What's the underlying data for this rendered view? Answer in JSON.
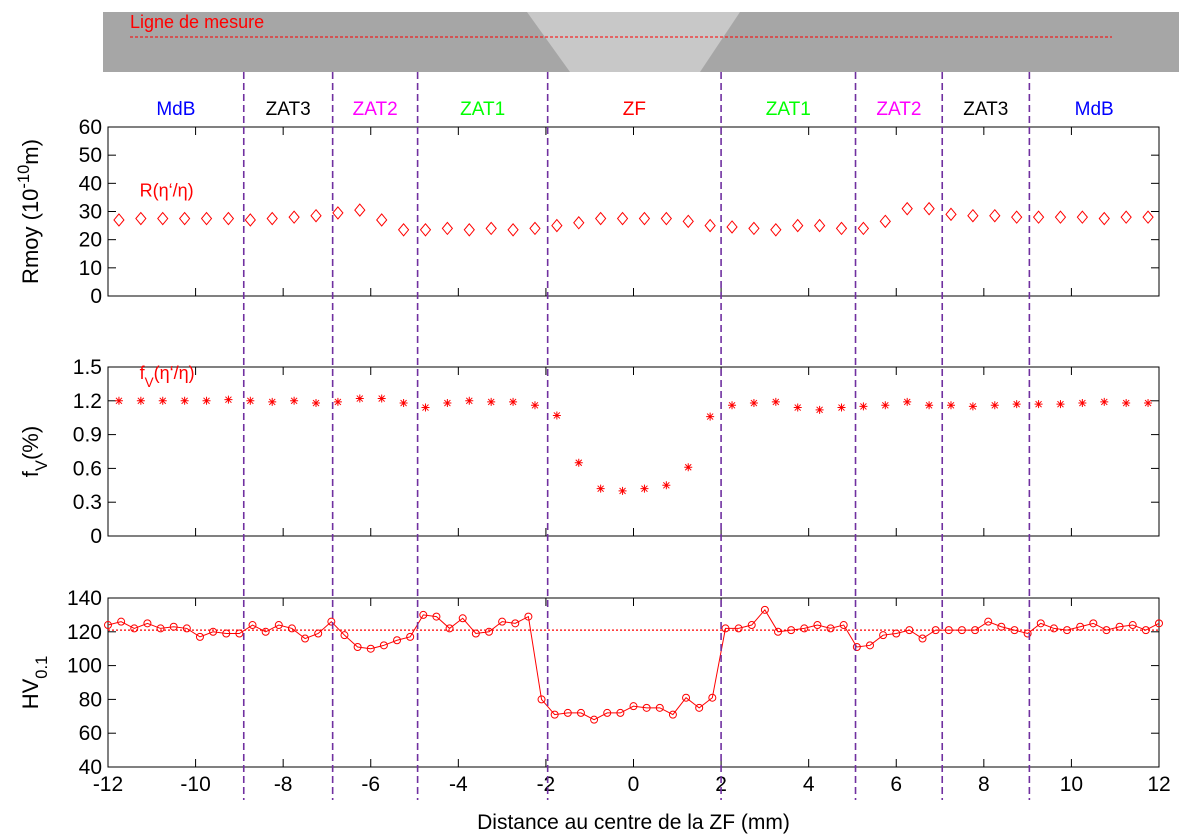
{
  "banner": {
    "label": "Ligne de mesure"
  },
  "zones": [
    {
      "label": "MdB",
      "color": "#0000ff"
    },
    {
      "label": "ZAT3",
      "color": "#000000"
    },
    {
      "label": "ZAT2",
      "color": "#ff00ff"
    },
    {
      "label": "ZAT1",
      "color": "#00ff00"
    },
    {
      "label": "ZF",
      "color": "#ff0000"
    },
    {
      "label": "ZAT1",
      "color": "#00ff00"
    },
    {
      "label": "ZAT2",
      "color": "#ff00ff"
    },
    {
      "label": "ZAT3",
      "color": "#000000"
    },
    {
      "label": "MdB",
      "color": "#0000ff"
    }
  ],
  "zone_boundaries": [
    -8.9,
    -6.87,
    -4.93,
    -1.96,
    2.0,
    5.07,
    7.05,
    9.04
  ],
  "boundary_color": "#7030a0",
  "x_axis": {
    "label": "Distance au centre de la ZF (mm)",
    "lim": [
      -12,
      12
    ],
    "ticks": [
      -12,
      -10,
      -8,
      -6,
      -4,
      -2,
      0,
      2,
      4,
      6,
      8,
      10,
      12
    ]
  },
  "chart_data": [
    {
      "type": "scatter",
      "marker": "diamond",
      "color": "#ff0000",
      "ylabel": [
        {
          "text": "Rmoy (10"
        },
        {
          "text": "-10",
          "sup": true
        },
        {
          "text": "m)"
        }
      ],
      "annotation": [
        {
          "text": "R(η‘/η)"
        }
      ],
      "ylim": [
        0,
        60
      ],
      "yticks": [
        0,
        10,
        20,
        30,
        40,
        50,
        60
      ],
      "x": [
        -11.75,
        -11.25,
        -10.75,
        -10.25,
        -9.75,
        -9.25,
        -8.75,
        -8.25,
        -7.75,
        -7.25,
        -6.75,
        -6.25,
        -5.75,
        -5.25,
        -4.75,
        -4.25,
        -3.75,
        -3.25,
        -2.75,
        -2.25,
        -1.75,
        -1.25,
        -0.75,
        -0.25,
        0.25,
        0.75,
        1.25,
        1.75,
        2.25,
        2.75,
        3.25,
        3.75,
        4.25,
        4.75,
        5.25,
        5.75,
        6.25,
        6.75,
        7.25,
        7.75,
        8.25,
        8.75,
        9.25,
        9.75,
        10.25,
        10.75,
        11.25,
        11.75
      ],
      "values": [
        27,
        27.5,
        27.5,
        27.5,
        27.5,
        27.5,
        27,
        27.5,
        28,
        28.5,
        29.5,
        30.5,
        27,
        23.5,
        23.5,
        24,
        23.5,
        24,
        23.5,
        24,
        25,
        26,
        27.5,
        27.5,
        27.5,
        27.5,
        26.5,
        25,
        24.5,
        24,
        23.5,
        25,
        25,
        24,
        24,
        26.5,
        31,
        31,
        29,
        28.5,
        28.5,
        28,
        28,
        28,
        28,
        27.5,
        28,
        28
      ]
    },
    {
      "type": "scatter",
      "marker": "asterisk",
      "color": "#ff0000",
      "ylabel": [
        {
          "text": "f"
        },
        {
          "text": "V",
          "sub": true
        },
        {
          "text": "(%)"
        }
      ],
      "annotation": [
        {
          "text": "f"
        },
        {
          "text": "V",
          "sub": true
        },
        {
          "text": "(η‘/η)"
        }
      ],
      "ylim": [
        0,
        1.5
      ],
      "yticks": [
        0,
        0.3,
        0.6,
        0.9,
        1.2,
        1.5
      ],
      "x": [
        -11.75,
        -11.25,
        -10.75,
        -10.25,
        -9.75,
        -9.25,
        -8.75,
        -8.25,
        -7.75,
        -7.25,
        -6.75,
        -6.25,
        -5.75,
        -5.25,
        -4.75,
        -4.25,
        -3.75,
        -3.25,
        -2.75,
        -2.25,
        -1.75,
        -1.25,
        -0.75,
        -0.25,
        0.25,
        0.75,
        1.25,
        1.75,
        2.25,
        2.75,
        3.25,
        3.75,
        4.25,
        4.75,
        5.25,
        5.75,
        6.25,
        6.75,
        7.25,
        7.75,
        8.25,
        8.75,
        9.25,
        9.75,
        10.25,
        10.75,
        11.25,
        11.75
      ],
      "values": [
        1.2,
        1.2,
        1.2,
        1.2,
        1.2,
        1.21,
        1.2,
        1.19,
        1.2,
        1.18,
        1.19,
        1.22,
        1.22,
        1.18,
        1.14,
        1.18,
        1.2,
        1.19,
        1.19,
        1.16,
        1.07,
        0.65,
        0.42,
        0.4,
        0.42,
        0.45,
        0.61,
        1.06,
        1.16,
        1.18,
        1.19,
        1.14,
        1.12,
        1.14,
        1.15,
        1.16,
        1.19,
        1.16,
        1.16,
        1.15,
        1.16,
        1.17,
        1.17,
        1.17,
        1.18,
        1.19,
        1.18,
        1.18
      ]
    },
    {
      "type": "line",
      "marker": "circle",
      "color": "#ff0000",
      "ylabel": [
        {
          "text": "HV"
        },
        {
          "text": "0.1",
          "sub": true
        }
      ],
      "reference_line": 121,
      "ylim": [
        40,
        140
      ],
      "yticks": [
        40,
        60,
        80,
        100,
        120,
        140
      ],
      "x": [
        -12,
        -11.7,
        -11.4,
        -11.1,
        -10.8,
        -10.5,
        -10.2,
        -9.9,
        -9.6,
        -9.3,
        -9,
        -8.7,
        -8.4,
        -8.1,
        -7.8,
        -7.5,
        -7.2,
        -6.9,
        -6.6,
        -6.3,
        -6,
        -5.7,
        -5.4,
        -5.1,
        -4.8,
        -4.5,
        -4.2,
        -3.9,
        -3.6,
        -3.3,
        -3,
        -2.7,
        -2.4,
        -2.1,
        -1.8,
        -1.5,
        -1.2,
        -0.9,
        -0.6,
        -0.3,
        0,
        0.3,
        0.6,
        0.9,
        1.2,
        1.5,
        1.8,
        2.1,
        2.4,
        2.7,
        3,
        3.3,
        3.6,
        3.9,
        4.2,
        4.5,
        4.8,
        5.1,
        5.4,
        5.7,
        6,
        6.3,
        6.6,
        6.9,
        7.2,
        7.5,
        7.8,
        8.1,
        8.4,
        8.7,
        9,
        9.3,
        9.6,
        9.9,
        10.2,
        10.5,
        10.8,
        11.1,
        11.4,
        11.7,
        12
      ],
      "values": [
        124,
        126,
        122,
        125,
        122,
        123,
        122,
        117,
        120,
        119,
        119,
        124,
        120,
        124,
        122,
        116,
        119,
        126,
        118,
        111,
        110,
        112,
        115,
        117,
        130,
        129,
        122,
        128,
        119,
        120,
        126,
        125,
        129,
        80,
        71,
        72,
        72,
        68,
        72,
        72,
        76,
        75,
        75,
        71,
        81,
        75,
        81,
        122,
        122,
        124,
        133,
        120,
        121,
        122,
        124,
        122,
        124,
        111,
        112,
        118,
        119,
        121,
        116,
        121,
        121,
        121,
        121,
        126,
        123,
        121,
        119,
        125,
        122,
        121,
        123,
        125,
        121,
        123,
        124,
        121,
        125
      ]
    }
  ]
}
